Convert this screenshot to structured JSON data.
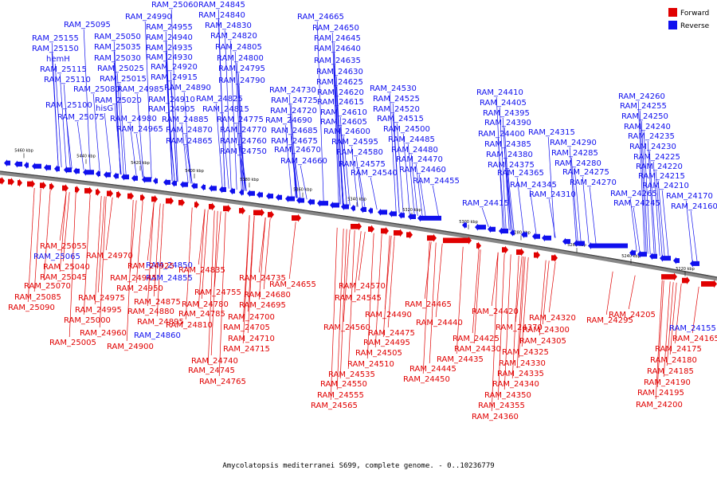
{
  "legend": [
    {
      "label": "Forward",
      "color": "#e00000"
    },
    {
      "label": "Reverse",
      "color": "#1010ee"
    }
  ],
  "caption": "Amycolatopsis mediterranei S699, complete genome. - 0..10236779",
  "ticks": [
    "5460 kbp",
    "5440 kbp",
    "5420 kbp",
    "5400 kbp",
    "5380 kbp",
    "5360 kbp",
    "5340 kbp",
    "5320 kbp",
    "5300 kbp",
    "5280 kbp",
    "5260 kbp",
    "5240 kbp",
    "5220 kbp"
  ],
  "reverse_labels": [
    "RAM_25060",
    "RAM_25095",
    "RAM_25155",
    "RAM_25150",
    "hemH",
    "RAM_25115",
    "RAM_25110",
    "RAM_25100",
    "RAM_25075",
    "RAM_24990",
    "RAM_25050",
    "RAM_25035",
    "RAM_25030",
    "RAM_25025",
    "RAM_25015",
    "RAM_25080",
    "RAM_25020",
    "hisG",
    "RAM_24980",
    "RAM_24985",
    "RAM_24965",
    "RAM_24955",
    "RAM_24940",
    "RAM_24935",
    "RAM_24930",
    "RAM_24920",
    "RAM_24915",
    "RAM_24910",
    "RAM_24905",
    "RAM_24890",
    "RAM_24885",
    "RAM_24870",
    "RAM_24865",
    "RAM_24845",
    "RAM_24840",
    "RAM_24830",
    "RAM_24820",
    "RAM_24805",
    "RAM_24800",
    "RAM_24795",
    "RAM_24790",
    "RAM_24825",
    "RAM_24815",
    "RAM_24775",
    "RAM_24770",
    "RAM_24760",
    "RAM_24750",
    "RAM_24730",
    "RAM_24725",
    "RAM_24720",
    "RAM_24690",
    "RAM_24685",
    "RAM_24675",
    "RAM_24670",
    "RAM_24660",
    "RAM_24665",
    "RAM_24650",
    "RAM_24645",
    "RAM_24640",
    "RAM_24635",
    "RAM_24630",
    "RAM_24625",
    "RAM_24620",
    "RAM_24615",
    "RAM_24610",
    "RAM_24605",
    "RAM_24600",
    "RAM_24595",
    "RAM_24580",
    "RAM_24575",
    "RAM_24540",
    "RAM_24530",
    "RAM_24525",
    "RAM_24520",
    "RAM_24515",
    "RAM_24500",
    "RAM_24485",
    "RAM_24480",
    "RAM_24470",
    "RAM_24460",
    "RAM_24455",
    "RAM_24410",
    "RAM_24405",
    "RAM_24395",
    "RAM_24390",
    "RAM_24400",
    "RAM_24385",
    "RAM_24380",
    "RAM_24375",
    "RAM_24365",
    "RAM_24345",
    "RAM_24415",
    "RAM_24315",
    "RAM_24310",
    "RAM_24290",
    "RAM_24285",
    "RAM_24280",
    "RAM_24275",
    "RAM_24270",
    "RAM_24265",
    "RAM_24260",
    "RAM_24255",
    "RAM_24250",
    "RAM_24240",
    "RAM_24235",
    "RAM_24230",
    "RAM_24225",
    "RAM_24220",
    "RAM_24215",
    "RAM_24210",
    "RAM_24245",
    "RAM_24170",
    "RAM_24160",
    "RAM_25065",
    "RAM_24855",
    "RAM_24850",
    "RAM_24860",
    "RAM_24155"
  ],
  "forward_labels": [
    "RAM_25055",
    "RAM_24970",
    "RAM_25040",
    "RAM_24925",
    "RAM_25045",
    "RAM_24945",
    "RAM_25070",
    "RAM_24950",
    "RAM_25085",
    "RAM_24975",
    "RAM_25090",
    "RAM_24995",
    "RAM_25000",
    "RAM_24960",
    "RAM_25005",
    "RAM_24900",
    "RAM_24895",
    "RAM_24880",
    "RAM_24875",
    "RAM_24835",
    "RAM_24810",
    "RAM_24785",
    "RAM_24780",
    "RAM_24755",
    "RAM_24735",
    "RAM_24740",
    "RAM_24745",
    "RAM_24765",
    "RAM_24715",
    "RAM_24710",
    "RAM_24705",
    "RAM_24700",
    "RAM_24695",
    "RAM_24680",
    "RAM_24655",
    "RAM_24570",
    "RAM_24545",
    "RAM_24560",
    "RAM_24535",
    "RAM_24550",
    "RAM_24555",
    "RAM_24565",
    "RAM_24465",
    "RAM_24490",
    "RAM_24475",
    "RAM_24495",
    "RAM_24505",
    "RAM_24510",
    "RAM_24440",
    "RAM_24445",
    "RAM_24450",
    "RAM_24420",
    "RAM_24425",
    "RAM_24430",
    "RAM_24435",
    "RAM_24370",
    "RAM_24320",
    "RAM_24300",
    "RAM_24305",
    "RAM_24325",
    "RAM_24330",
    "RAM_24335",
    "RAM_24340",
    "RAM_24350",
    "RAM_24355",
    "RAM_24360",
    "RAM_24295",
    "RAM_24205",
    "RAM_24165",
    "RAM_24175",
    "RAM_24180",
    "RAM_24185",
    "RAM_24190",
    "RAM_24195",
    "RAM_24200"
  ]
}
